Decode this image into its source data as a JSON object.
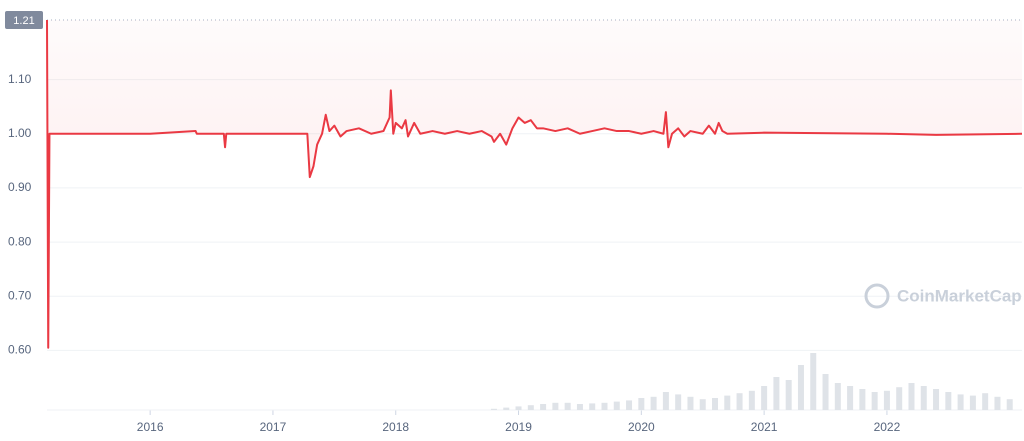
{
  "chart_data": {
    "type": "line",
    "watermark": "CoinMarketCap",
    "x": [
      2015.16,
      2015.17,
      2015.18,
      2016.0,
      2016.37,
      2016.38,
      2016.6,
      2016.61,
      2016.62,
      2017.28,
      2017.3,
      2017.33,
      2017.36,
      2017.4,
      2017.43,
      2017.46,
      2017.5,
      2017.55,
      2017.6,
      2017.7,
      2017.8,
      2017.9,
      2017.95,
      2017.96,
      2017.98,
      2018.0,
      2018.05,
      2018.08,
      2018.1,
      2018.15,
      2018.2,
      2018.3,
      2018.4,
      2018.5,
      2018.6,
      2018.7,
      2018.78,
      2018.8,
      2018.85,
      2018.9,
      2018.95,
      2019.0,
      2019.05,
      2019.1,
      2019.15,
      2019.2,
      2019.3,
      2019.4,
      2019.5,
      2019.6,
      2019.7,
      2019.8,
      2019.9,
      2020.0,
      2020.1,
      2020.18,
      2020.2,
      2020.22,
      2020.25,
      2020.3,
      2020.35,
      2020.4,
      2020.5,
      2020.55,
      2020.6,
      2020.63,
      2020.66,
      2020.7,
      2021.0,
      2022.0,
      2022.4,
      2023.1
    ],
    "series": [
      {
        "color": "#ea3943",
        "values": [
          1.21,
          0.605,
          1.0,
          1.0,
          1.005,
          1.0,
          1.0,
          0.975,
          1.0,
          1.0,
          0.92,
          0.94,
          0.98,
          1.0,
          1.035,
          1.005,
          1.015,
          0.995,
          1.005,
          1.01,
          1.0,
          1.005,
          1.03,
          1.08,
          1.0,
          1.02,
          1.01,
          1.025,
          0.995,
          1.02,
          1.0,
          1.005,
          1.0,
          1.005,
          1.0,
          1.005,
          0.995,
          0.985,
          1.0,
          0.98,
          1.01,
          1.03,
          1.02,
          1.025,
          1.01,
          1.01,
          1.005,
          1.01,
          1.0,
          1.005,
          1.01,
          1.005,
          1.005,
          1.0,
          1.005,
          1.0,
          1.04,
          0.975,
          1.0,
          1.01,
          0.995,
          1.005,
          1.0,
          1.015,
          1.0,
          1.02,
          1.005,
          1.0,
          1.002,
          1.0,
          0.998,
          1.0
        ]
      }
    ],
    "volume": {
      "color": "#dfe3e8",
      "x": [
        2018.8,
        2018.9,
        2019.0,
        2019.1,
        2019.2,
        2019.3,
        2019.4,
        2019.5,
        2019.6,
        2019.7,
        2019.8,
        2019.9,
        2020.0,
        2020.1,
        2020.2,
        2020.3,
        2020.4,
        2020.5,
        2020.6,
        2020.7,
        2020.8,
        2020.9,
        2021.0,
        2021.1,
        2021.2,
        2021.3,
        2021.4,
        2021.5,
        2021.6,
        2021.7,
        2021.8,
        2021.9,
        2022.0,
        2022.1,
        2022.2,
        2022.3,
        2022.4,
        2022.5,
        2022.6,
        2022.7,
        2022.8,
        2022.9,
        2023.0
      ],
      "values": [
        2,
        4,
        6,
        8,
        10,
        12,
        12,
        10,
        11,
        12,
        14,
        16,
        20,
        22,
        30,
        26,
        22,
        18,
        20,
        24,
        28,
        32,
        40,
        55,
        50,
        75,
        95,
        60,
        45,
        40,
        35,
        30,
        32,
        38,
        45,
        40,
        35,
        30,
        26,
        24,
        28,
        22,
        18
      ],
      "ylim": [
        0,
        100
      ]
    },
    "xlim": [
      2015.16,
      2023.1
    ],
    "xticks": [
      2016,
      2017,
      2018,
      2019,
      2020,
      2021,
      2022
    ],
    "ylim": [
      0.49,
      1.21
    ],
    "yticks": [
      {
        "value": 0.6,
        "label": "0.60"
      },
      {
        "value": 0.7,
        "label": "0.70"
      },
      {
        "value": 0.8,
        "label": "0.80"
      },
      {
        "value": 0.9,
        "label": "0.90"
      },
      {
        "value": 1.0,
        "label": "1.00"
      },
      {
        "value": 1.1,
        "label": "1.10"
      },
      {
        "value": 1.21,
        "label": "1.21"
      }
    ],
    "grid": true
  }
}
